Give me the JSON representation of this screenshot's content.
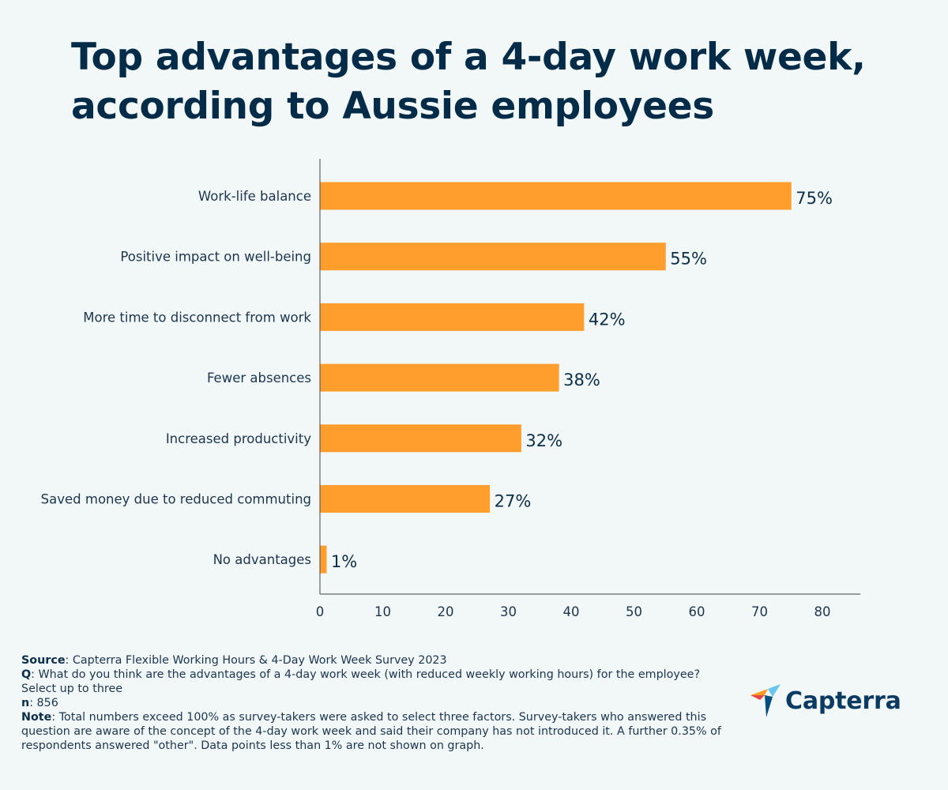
{
  "title": "Top advantages of a 4-day work week, according to Aussie employees",
  "chart_data": {
    "type": "bar",
    "orientation": "horizontal",
    "categories": [
      "Work-life balance",
      "Positive impact on well-being",
      "More time to disconnect from work",
      "Fewer absences",
      "Increased productivity",
      "Saved money due to reduced commuting",
      "No advantages"
    ],
    "values": [
      75,
      55,
      42,
      38,
      32,
      27,
      1
    ],
    "value_labels": [
      "75%",
      "55%",
      "42%",
      "38%",
      "32%",
      "27%",
      "1%"
    ],
    "xticks": [
      0,
      10,
      20,
      30,
      40,
      50,
      60,
      70,
      80
    ],
    "xlim": [
      0,
      86
    ],
    "xlabel": "",
    "ylabel": "",
    "grid": false,
    "bar_color": "#ff9e2c"
  },
  "footnotes": {
    "source_label": "Source",
    "source_text": ": Capterra Flexible Working Hours & 4-Day Work Week Survey 2023",
    "q_label": "Q",
    "q_text": ": What do you think are the advantages of a 4-day work week (with reduced weekly working hours) for the employee? Select up to three",
    "n_label": "n",
    "n_text": ": 856",
    "note_label": "Note",
    "note_text": ": Total numbers exceed 100% as survey-takers were asked to select three factors. Survey-takers who answered this question are aware of the concept of the 4-day work week and said their company has not introduced it. A further 0.35% of respondents answered \"other\". Data points less than 1% are not shown on graph."
  },
  "logo": {
    "text": "Capterra",
    "icon": "capterra-arrow-icon"
  }
}
